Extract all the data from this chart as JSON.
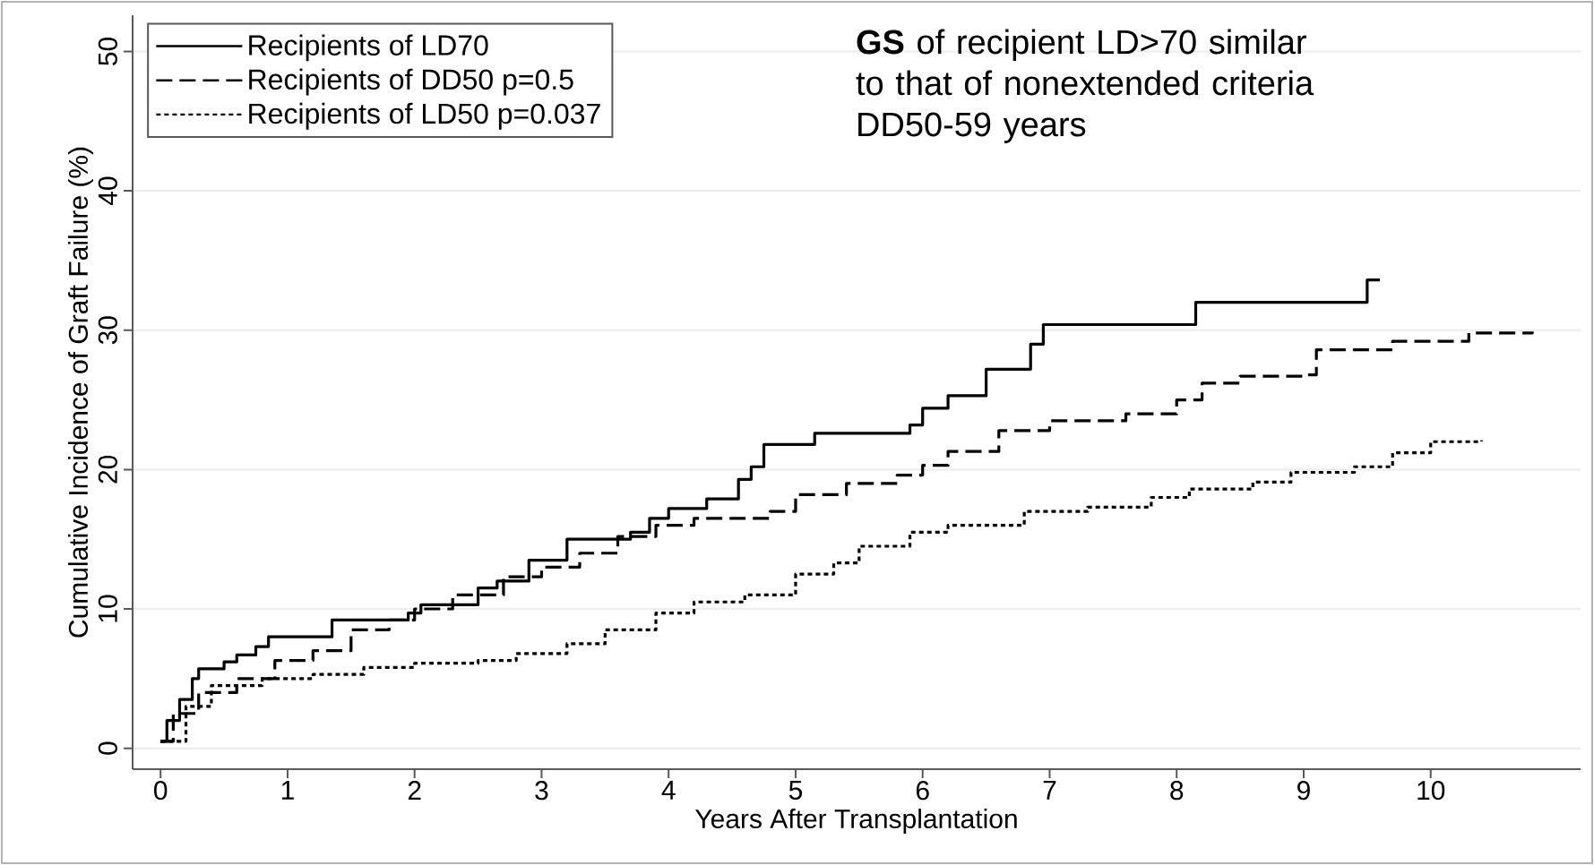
{
  "chart_data": {
    "type": "step",
    "xlabel": "Years After Transplantation",
    "ylabel": "Cumulative Incidence of Graft Failure (%)",
    "xlim": [
      -0.22,
      11.18
    ],
    "ylim": [
      -1.5,
      52.6
    ],
    "xticks": [
      0,
      1,
      2,
      3,
      4,
      5,
      6,
      7,
      8,
      9,
      10
    ],
    "yticks": [
      0,
      10,
      20,
      30,
      40,
      50
    ],
    "grid": "y",
    "legend": "top left",
    "annotations": [
      "**GS** of recipient LD>70 similar to that of nonextended criteria  DD50-59 years"
    ],
    "series": [
      {
        "name": "Recipients of LD70",
        "color": "#000000",
        "line_style": "solid",
        "x": [
          0,
          0.05,
          0.15,
          0.25,
          0.3,
          0.5,
          0.6,
          0.75,
          0.85,
          1.35,
          1.95,
          2.05,
          2.5,
          2.65,
          2.9,
          3.2,
          3.7,
          3.85,
          4.0,
          4.3,
          4.55,
          4.65,
          4.75,
          5.15,
          5.9,
          6.0,
          6.2,
          6.5,
          6.85,
          6.95,
          8.15,
          9.5,
          9.6
        ],
        "values": [
          0.5,
          2,
          3.5,
          5,
          5.7,
          6.2,
          6.7,
          7.3,
          8,
          9.2,
          9.7,
          10.3,
          11.5,
          12,
          13.5,
          15,
          15.5,
          16.5,
          17.2,
          17.9,
          19.3,
          20.2,
          21.8,
          22.6,
          23.2,
          24.4,
          25.3,
          27.2,
          29,
          30.4,
          32,
          33.6,
          33.6
        ]
      },
      {
        "name": "Recipients of DD50   p=0.5",
        "color": "#000000",
        "line_style": "dashed",
        "x": [
          0,
          0.1,
          0.3,
          0.6,
          0.9,
          1.2,
          1.5,
          1.8,
          2.0,
          2.3,
          2.7,
          3.0,
          3.3,
          3.6,
          3.9,
          4.2,
          4.8,
          5.0,
          5.4,
          5.8,
          6.0,
          6.2,
          6.6,
          7.0,
          7.6,
          8.0,
          8.2,
          8.5,
          9.0,
          9.1,
          9.7,
          10.3,
          10.8
        ],
        "values": [
          0.5,
          2.5,
          4,
          5,
          6.3,
          7,
          8.5,
          9.2,
          10,
          11,
          12.3,
          13,
          14,
          15.2,
          16,
          16.5,
          17,
          18.2,
          19,
          19.6,
          20.3,
          21.3,
          22.8,
          23.5,
          24,
          25,
          26.2,
          26.7,
          26.8,
          28.6,
          29.2,
          29.8,
          29.9
        ]
      },
      {
        "name": "Recipients of LD50   p=0.037",
        "color": "#000000",
        "line_style": "dotted",
        "x": [
          0,
          0.2,
          0.4,
          0.8,
          1.2,
          1.6,
          2.0,
          2.5,
          2.8,
          3.2,
          3.5,
          3.9,
          4.2,
          4.6,
          5.0,
          5.3,
          5.5,
          5.9,
          6.2,
          6.8,
          7.3,
          7.8,
          8.1,
          8.6,
          8.9,
          9.4,
          9.7,
          10.0,
          10.4
        ],
        "values": [
          0.5,
          3,
          4.5,
          5,
          5.3,
          5.8,
          6.1,
          6.3,
          6.8,
          7.5,
          8.5,
          9.7,
          10.5,
          11,
          12.5,
          13.3,
          14.5,
          15.5,
          16,
          17,
          17.3,
          18,
          18.6,
          19.1,
          19.8,
          20.2,
          21.2,
          22,
          22.1
        ]
      }
    ]
  }
}
